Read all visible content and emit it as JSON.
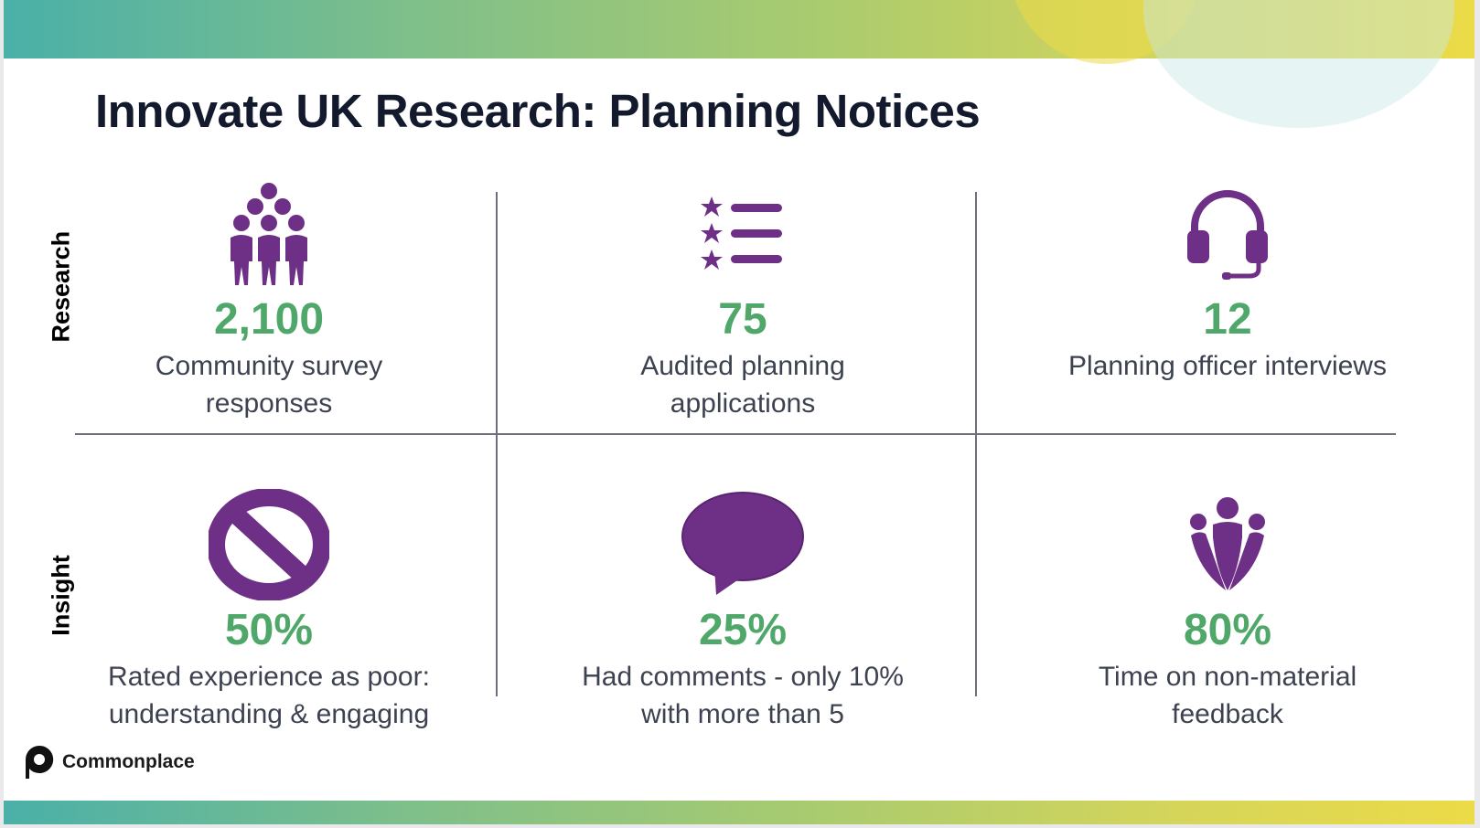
{
  "title": "Innovate UK Research: Planning Notices",
  "rows": {
    "research": "Research",
    "insight": "Insight"
  },
  "research": [
    {
      "icon": "people-group-icon",
      "value": "2,100",
      "label_line1": "Community survey",
      "label_line2": "responses"
    },
    {
      "icon": "star-list-icon",
      "value": "75",
      "label_line1": "Audited planning",
      "label_line2": "applications"
    },
    {
      "icon": "headset-icon",
      "value": "12",
      "label_line1": "Planning officer interviews",
      "label_line2": ""
    }
  ],
  "insight": [
    {
      "icon": "prohibited-icon",
      "value": "50%",
      "label_line1": "Rated experience as poor:",
      "label_line2": "understanding & engaging"
    },
    {
      "icon": "speech-bubble-icon",
      "value": "25%",
      "label_line1": "Had comments - only 10%",
      "label_line2": "with more than 5"
    },
    {
      "icon": "team-icon",
      "value": "80%",
      "label_line1": "Time on non-material",
      "label_line2": "feedback"
    }
  ],
  "logo": {
    "brand": "Commonplace"
  },
  "colors": {
    "icon_purple": "#6e2f86",
    "value_green": "#4fa869",
    "title_navy": "#141a2e"
  }
}
